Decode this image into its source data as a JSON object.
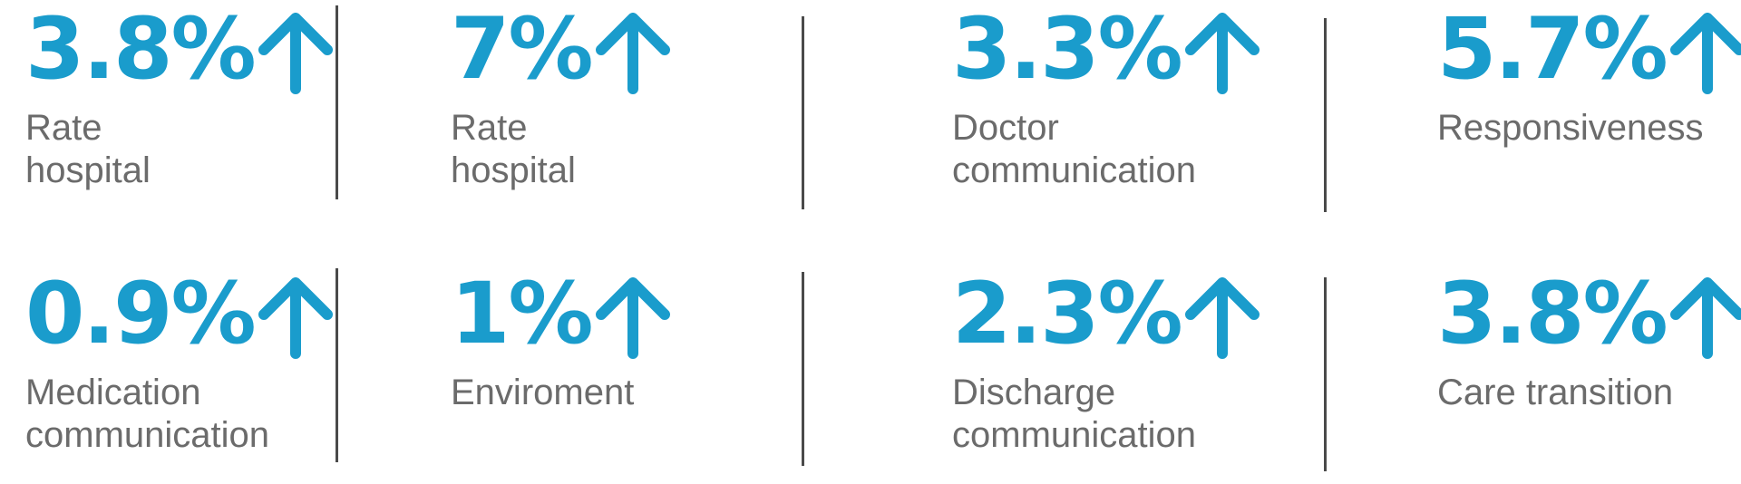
{
  "stats": [
    {
      "value": "3.8%",
      "label": "Rate\nhospital"
    },
    {
      "value": "7%",
      "label": "Rate\nhospital"
    },
    {
      "value": "3.3%",
      "label": "Doctor\ncommunication"
    },
    {
      "value": "5.7%",
      "label": "Responsiveness"
    },
    {
      "value": "0.9%",
      "label": "Medication\ncommunication"
    },
    {
      "value": "1%",
      "label": "Enviroment"
    },
    {
      "value": "2.3%",
      "label": "Discharge\ncommunication"
    },
    {
      "value": "3.8%",
      "label": "Care transition"
    }
  ],
  "icon": "arrow-up-icon",
  "colors": {
    "accent": "#1a9ccc",
    "label": "#6b6b6b",
    "divider": "#4a4a4a"
  }
}
